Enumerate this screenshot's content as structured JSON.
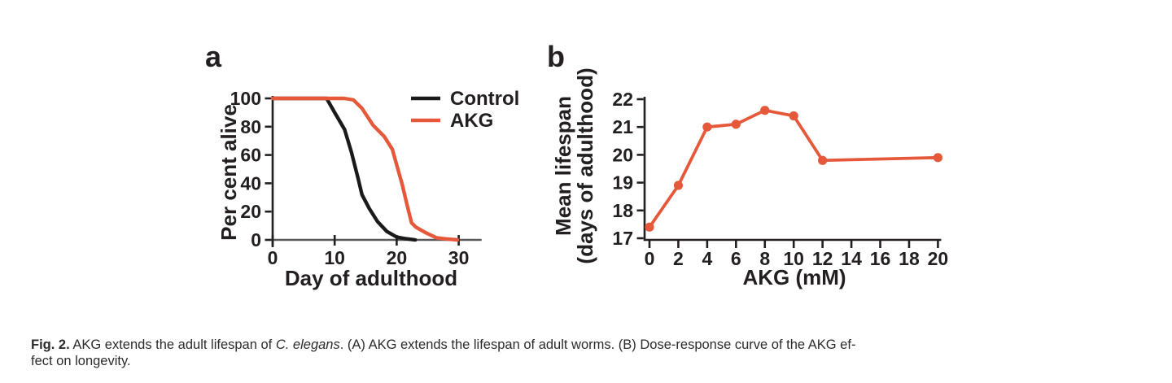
{
  "colors": {
    "accent_orange": "#E5593A",
    "control_black": "#1A1A1A",
    "axis_black": "#231F20",
    "baseline_gray": "#58585A"
  },
  "panel_a": {
    "label": "a",
    "ylabel": "Per cent alive",
    "xlabel": "Day of adulthood",
    "legend": [
      {
        "label": "Control",
        "color": "#1A1A1A"
      },
      {
        "label": "AKG",
        "color": "#E5593A"
      }
    ]
  },
  "panel_b": {
    "label": "b",
    "ylabel_line1": "Mean lifespan",
    "ylabel_line2": "(days of adulthood)",
    "xlabel": "AKG (mM)"
  },
  "caption": {
    "fig_label": "Fig. 2.",
    "text_1": " AKG extends the adult lifespan of ",
    "species_italic": "C. elegans",
    "text_2": ". (A) AKG extends the lifespan of adult worms. (B) Dose-response curve of the AKG ef-",
    "text_3": "fect on longevity."
  },
  "chart_data": [
    {
      "type": "line",
      "panel": "a",
      "xlabel": "Day of adulthood",
      "ylabel": "Per cent alive",
      "xlim": [
        0,
        35
      ],
      "ylim": [
        0,
        100
      ],
      "xticks": [
        0,
        10,
        20,
        30
      ],
      "yticks": [
        0,
        20,
        40,
        60,
        80,
        100
      ],
      "grid": false,
      "legend_position": "top-right",
      "series": [
        {
          "name": "Control",
          "color": "#1A1A1A",
          "points": [
            [
              0,
              100
            ],
            [
              8.7,
              100
            ],
            [
              10,
              90
            ],
            [
              11.6,
              78
            ],
            [
              12.7,
              62
            ],
            [
              13.8,
              43
            ],
            [
              14.4,
              32
            ],
            [
              15.6,
              22
            ],
            [
              16.9,
              13
            ],
            [
              18.4,
              6
            ],
            [
              20,
              2
            ],
            [
              21.5,
              0.8
            ],
            [
              23,
              0
            ]
          ]
        },
        {
          "name": "AKG",
          "color": "#E5593A",
          "points": [
            [
              0,
              100
            ],
            [
              11.5,
              100
            ],
            [
              13,
              99
            ],
            [
              14.4,
              93
            ],
            [
              16.2,
              81
            ],
            [
              18,
              73
            ],
            [
              19.3,
              64
            ],
            [
              20,
              53
            ],
            [
              20.9,
              39
            ],
            [
              21.6,
              26
            ],
            [
              22.4,
              12
            ],
            [
              23.1,
              9
            ],
            [
              24.7,
              5
            ],
            [
              26.4,
              1.5
            ],
            [
              28,
              0.7
            ],
            [
              29.8,
              0
            ]
          ]
        }
      ]
    },
    {
      "type": "line",
      "panel": "b",
      "xlabel": "AKG (mM)",
      "ylabel": "Mean lifespan (days of adulthood)",
      "xlim": [
        0,
        20
      ],
      "ylim": [
        17,
        22
      ],
      "xticks": [
        0,
        2,
        4,
        6,
        8,
        10,
        12,
        14,
        16,
        18,
        20
      ],
      "yticks": [
        17,
        18,
        19,
        20,
        21,
        22
      ],
      "grid": false,
      "markers": true,
      "series": [
        {
          "name": "AKG",
          "color": "#E5593A",
          "x": [
            0,
            2,
            4,
            6,
            8,
            10,
            12,
            20
          ],
          "y": [
            17.4,
            18.9,
            21.0,
            21.1,
            21.6,
            21.4,
            19.8,
            19.9
          ]
        }
      ]
    }
  ]
}
